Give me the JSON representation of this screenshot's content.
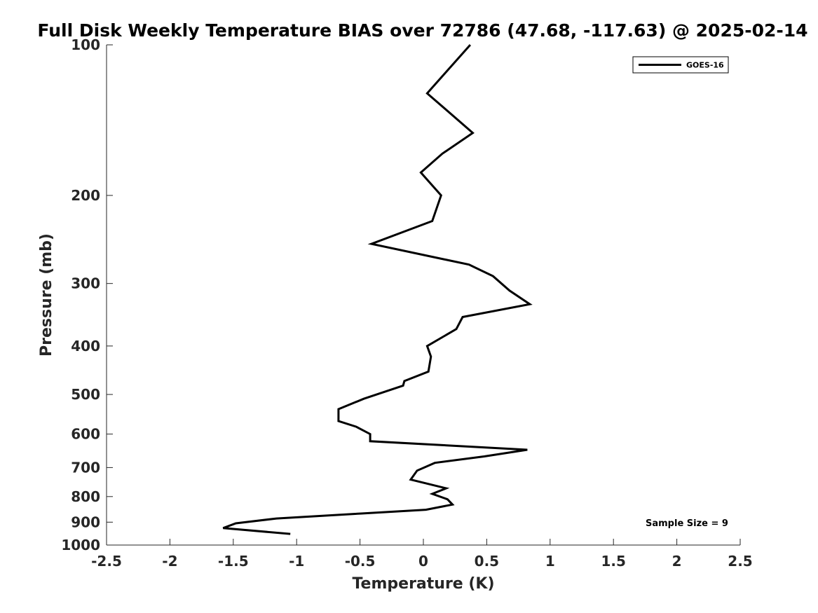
{
  "chart_data": {
    "type": "line",
    "title": "Full Disk Weekly Temperature BIAS over 72786 (47.68, -117.63) @ 2025-02-14",
    "xlabel": "Temperature (K)",
    "ylabel": "Pressure (mb)",
    "xlim": [
      -2.5,
      2.5
    ],
    "ylim": [
      100,
      1000
    ],
    "y_scale": "log",
    "y_reversed": true,
    "x_ticks": [
      -2.5,
      -2,
      -1.5,
      -1,
      -0.5,
      0,
      0.5,
      1,
      1.5,
      2,
      2.5
    ],
    "x_tick_labels": [
      "-2.5",
      "-2",
      "-1.5",
      "-1",
      "-0.5",
      "0",
      "0.5",
      "1",
      "1.5",
      "2",
      "2.5"
    ],
    "y_ticks": [
      100,
      200,
      300,
      400,
      500,
      600,
      700,
      800,
      900,
      1000
    ],
    "y_tick_labels": [
      "100",
      "200",
      "300",
      "400",
      "500",
      "600",
      "700",
      "800",
      "900",
      "1000"
    ],
    "grid": false,
    "legend_position": "top-right",
    "series": [
      {
        "name": "GOES-16",
        "color": "#000000",
        "points": [
          {
            "p": 100,
            "t": 0.37
          },
          {
            "p": 125,
            "t": 0.03
          },
          {
            "p": 150,
            "t": 0.39
          },
          {
            "p": 165,
            "t": 0.15
          },
          {
            "p": 180,
            "t": -0.02
          },
          {
            "p": 200,
            "t": 0.14
          },
          {
            "p": 225,
            "t": 0.07
          },
          {
            "p": 250,
            "t": -0.41
          },
          {
            "p": 275,
            "t": 0.36
          },
          {
            "p": 290,
            "t": 0.55
          },
          {
            "p": 310,
            "t": 0.68
          },
          {
            "p": 330,
            "t": 0.84
          },
          {
            "p": 350,
            "t": 0.31
          },
          {
            "p": 370,
            "t": 0.26
          },
          {
            "p": 400,
            "t": 0.03
          },
          {
            "p": 420,
            "t": 0.06
          },
          {
            "p": 450,
            "t": 0.04
          },
          {
            "p": 470,
            "t": -0.15
          },
          {
            "p": 480,
            "t": -0.16
          },
          {
            "p": 510,
            "t": -0.47
          },
          {
            "p": 535,
            "t": -0.67
          },
          {
            "p": 565,
            "t": -0.67
          },
          {
            "p": 580,
            "t": -0.53
          },
          {
            "p": 600,
            "t": -0.42
          },
          {
            "p": 620,
            "t": -0.42
          },
          {
            "p": 645,
            "t": 0.82
          },
          {
            "p": 665,
            "t": 0.48
          },
          {
            "p": 685,
            "t": 0.09
          },
          {
            "p": 710,
            "t": -0.05
          },
          {
            "p": 740,
            "t": -0.1
          },
          {
            "p": 770,
            "t": 0.18
          },
          {
            "p": 790,
            "t": 0.07
          },
          {
            "p": 810,
            "t": 0.19
          },
          {
            "p": 830,
            "t": 0.23
          },
          {
            "p": 850,
            "t": 0.02
          },
          {
            "p": 865,
            "t": -0.49
          },
          {
            "p": 885,
            "t": -1.16
          },
          {
            "p": 905,
            "t": -1.48
          },
          {
            "p": 925,
            "t": -1.58
          },
          {
            "p": 950,
            "t": -1.05
          }
        ]
      }
    ],
    "annotation": "Sample Size = 9"
  }
}
